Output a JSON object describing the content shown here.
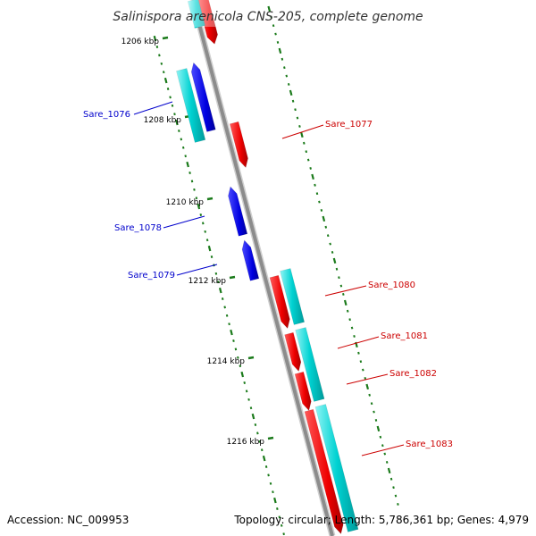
{
  "title": "Salinispora arenicola CNS-205, complete genome",
  "footer": {
    "accession": "Accession: NC_009953",
    "topology": "Topology: circular; Length: 5,786,361 bp; Genes: 4,979"
  },
  "colors": {
    "backbone": "#8c8c8c",
    "tick": "#1a7a1a",
    "forward_cds": "#ff0000",
    "reverse_cds": "#0000ee",
    "rna_outer": "#00cccc",
    "forward_label": "#cc0000",
    "reverse_label": "#0000cc"
  },
  "ticks": [
    {
      "label": "1206 kbp"
    },
    {
      "label": "1208 kbp"
    },
    {
      "label": "1210 kbp"
    },
    {
      "label": "1212 kbp"
    },
    {
      "label": "1214 kbp"
    },
    {
      "label": "1216 kbp"
    }
  ],
  "genes": [
    {
      "label": "Sare_1076",
      "strand": "reverse"
    },
    {
      "label": "Sare_1077",
      "strand": "forward"
    },
    {
      "label": "Sare_1078",
      "strand": "reverse"
    },
    {
      "label": "Sare_1079",
      "strand": "reverse"
    },
    {
      "label": "Sare_1080",
      "strand": "forward"
    },
    {
      "label": "Sare_1081",
      "strand": "forward"
    },
    {
      "label": "Sare_1082",
      "strand": "forward"
    },
    {
      "label": "Sare_1083",
      "strand": "forward"
    }
  ]
}
